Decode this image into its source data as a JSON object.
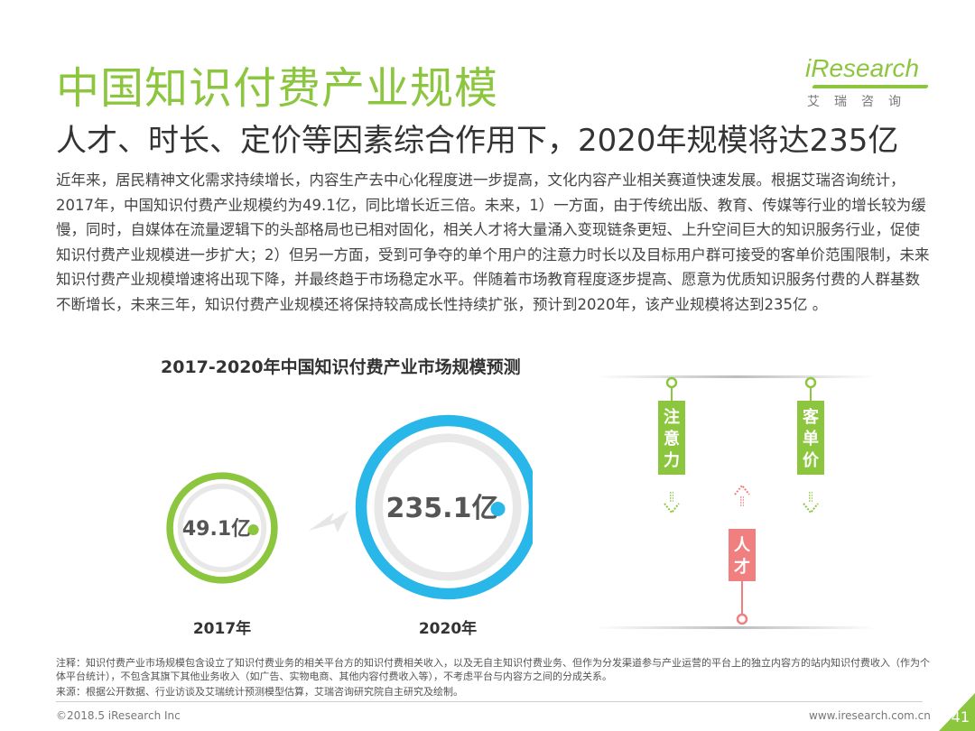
{
  "page": {
    "title": "中国知识付费产业规模",
    "subtitle": "人才、时长、定价等因素综合作用下，2020年规模将达235亿",
    "body": "近年来，居民精神文化需求持续增长，内容生产去中心化程度进一步提高，文化内容产业相关赛道快速发展。根据艾瑞咨询统计，2017年，中国知识付费产业规模约为49.1亿，同比增长近三倍。未来，1）一方面，由于传统出版、教育、传媒等行业的增长较为缓慢，同时，自媒体在流量逻辑下的头部格局也已相对固化，相关人才将大量涌入变现链条更短、上升空间巨大的知识服务行业，促使知识付费产业规模进一步扩大；2）但另一方面，受到可争夺的单个用户的注意力时长以及目标用户群可接受的客单价范围限制，未来知识付费产业规模增速将出现下降，并最终趋于市场稳定水平。伴随着市场教育程度逐步提高、愿意为优质知识服务付费的人群基数不断增长，未来三年，知识付费产业规模还将保持较高成长性持续扩张，预计到2020年，该产业规模将达到235亿 。",
    "note": "注释：知识付费产业市场规模包含设立了知识付费业务的相关平台方的知识付费相关收入，以及无自主知识付费业务、但作为分发渠道参与产业运营的平台上的独立内容方的站内知识付费收入（作为个体平台统计），不包含其旗下其他业务收入（如广告、实物电商、其他内容付费收入等），不考虑平台与内容方之间的分成关系。",
    "source": "来源：根据公开数据、行业访谈及艾瑞统计预测模型估算，艾瑞咨询研究院自主研究及绘制。",
    "footer_left": "©2018.5 iResearch Inc",
    "footer_right": "www.iresearch.com.cn",
    "page_number": "41"
  },
  "logo": {
    "brand": "iResearch",
    "brand_cn": "艾瑞咨询"
  },
  "chart_data": {
    "type": "bubble",
    "title": "2017-2020年中国知识付费产业市场规模预测",
    "categories": [
      "2017年",
      "2020年"
    ],
    "values": [
      49.1,
      235.1
    ],
    "value_labels": [
      "49.1亿",
      "235.1亿"
    ],
    "colors": [
      "#8cc63f",
      "#29b6e8"
    ]
  },
  "factors": {
    "items": [
      {
        "label": "注意力",
        "direction": "down",
        "color": "#8cc63f"
      },
      {
        "label": "人才",
        "direction": "up",
        "color": "#f08080"
      },
      {
        "label": "客单价",
        "direction": "down",
        "color": "#8cc63f"
      }
    ]
  },
  "colors": {
    "accent_green": "#8cc63f",
    "accent_blue": "#29b6e8",
    "accent_red": "#f08080"
  }
}
